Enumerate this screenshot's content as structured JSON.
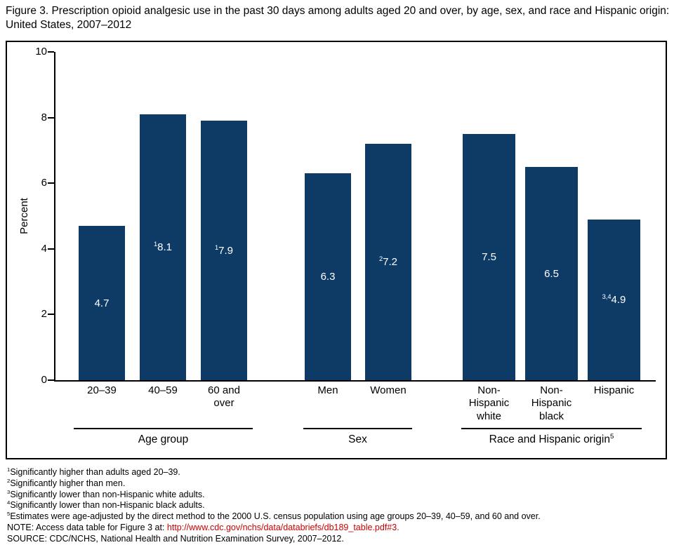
{
  "title": "Figure 3. Prescription opioid analgesic use in the past 30 days among adults aged 20 and over, by age, sex, and race and Hispanic origin: United States, 2007–2012",
  "colors": {
    "bar_navy": "#0d3b66",
    "link_red": "#cc0000",
    "axis_black": "#000000"
  },
  "chart_data": {
    "type": "bar",
    "title": "Prescription opioid analgesic use in the past 30 days among adults aged 20 and over, by age, sex, and race and Hispanic origin: United States, 2007–2012",
    "ylabel": "Percent",
    "xlabel": "",
    "ylim": [
      0,
      10
    ],
    "yticks": [
      0,
      2,
      4,
      6,
      8,
      10
    ],
    "grid": false,
    "legend": "none",
    "bar_color": "#0d3b66",
    "groups": [
      {
        "label": "Age group",
        "label_sup": "",
        "bars": [
          {
            "category": "20–39",
            "tick_label": "20–39",
            "value": 4.7,
            "value_sup": ""
          },
          {
            "category": "40–59",
            "tick_label": "40–59",
            "value": 8.1,
            "value_sup": "1"
          },
          {
            "category": "60 and over",
            "tick_label": "60 and\nover",
            "value": 7.9,
            "value_sup": "1"
          }
        ]
      },
      {
        "label": "Sex",
        "label_sup": "",
        "bars": [
          {
            "category": "Men",
            "tick_label": "Men",
            "value": 6.3,
            "value_sup": ""
          },
          {
            "category": "Women",
            "tick_label": "Women",
            "value": 7.2,
            "value_sup": "2"
          }
        ]
      },
      {
        "label": "Race and Hispanic origin",
        "label_sup": "5",
        "bars": [
          {
            "category": "Non-Hispanic white",
            "tick_label": "Non-\nHispanic\nwhite",
            "value": 7.5,
            "value_sup": ""
          },
          {
            "category": "Non-Hispanic black",
            "tick_label": "Non-\nHispanic\nblack",
            "value": 6.5,
            "value_sup": ""
          },
          {
            "category": "Hispanic",
            "tick_label": "Hispanic",
            "value": 4.9,
            "value_sup": "3,4"
          }
        ]
      }
    ]
  },
  "footnotes": [
    {
      "sup": "1",
      "text": "Significantly higher than adults aged 20–39."
    },
    {
      "sup": "2",
      "text": "Significantly higher than men."
    },
    {
      "sup": "3",
      "text": "Significantly lower than non-Hispanic white adults."
    },
    {
      "sup": "4",
      "text": "Significantly lower than non-Hispanic black adults."
    },
    {
      "sup": "5",
      "text": "Estimates were age-adjusted by the direct method to the 2000 U.S. census population using age groups 20–39, 40–59, and 60 and over."
    }
  ],
  "note": {
    "prefix": "NOTE: Access data table for Figure 3 at: ",
    "link": "http://www.cdc.gov/nchs/data/databriefs/db189_table.pdf#3",
    "suffix": "."
  },
  "source": "SOURCE: CDC/NCHS, National Health and Nutrition Examination Survey, 2007–2012."
}
